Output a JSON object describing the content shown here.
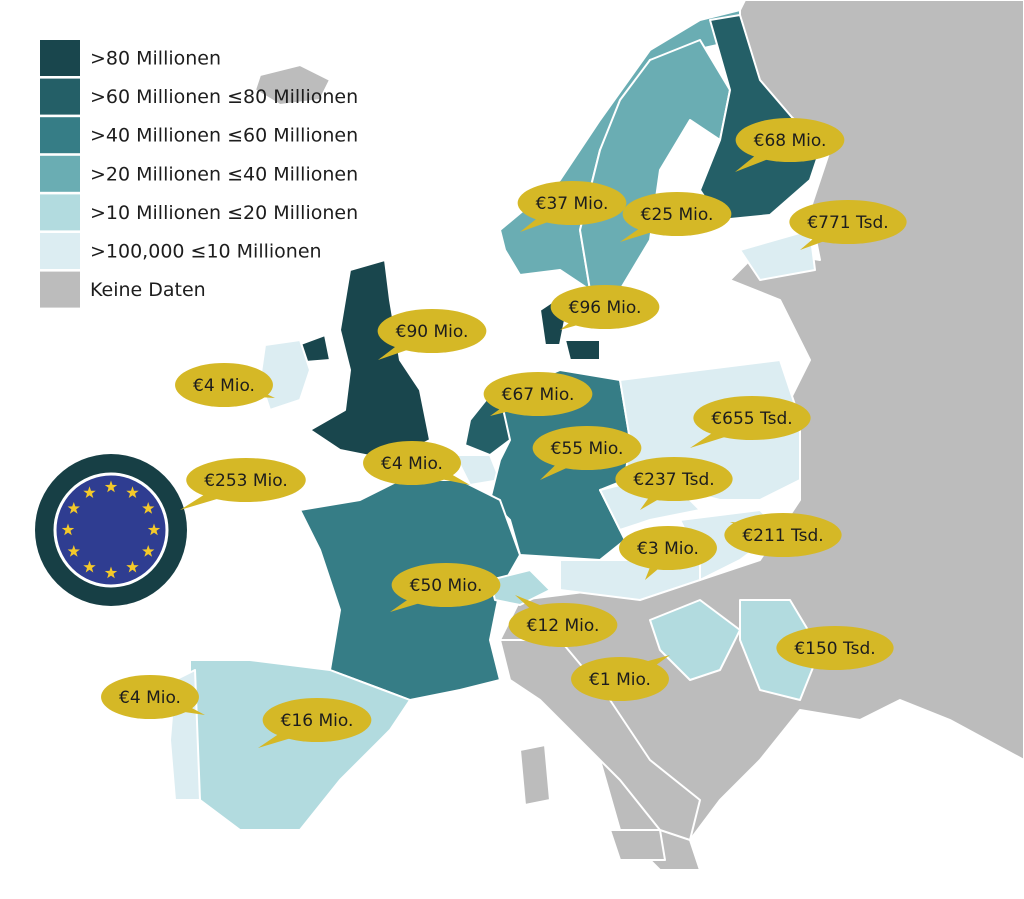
{
  "legend": [
    {
      "label": ">80 Millionen",
      "color": "#19464d"
    },
    {
      "label": ">60 Millionen ≤80 Millionen",
      "color": "#245f67"
    },
    {
      "label": ">40 Millionen ≤60 Millionen",
      "color": "#367d86"
    },
    {
      "label": ">20 Millionen ≤40 Millionen",
      "color": "#6aadb3"
    },
    {
      "label": ">10 Millionen ≤20 Millionen",
      "color": "#b2dbdf"
    },
    {
      "label": ">100,000 ≤10 Millionen",
      "color": "#dcedf2"
    },
    {
      "label": "Keine Daten",
      "color": "#bcbcbc"
    }
  ],
  "bubble_color": "#d5b826",
  "callouts": [
    {
      "label": "€68 Mio."
    },
    {
      "label": "€771 Tsd."
    },
    {
      "label": "€37 Mio."
    },
    {
      "label": "€25 Mio."
    },
    {
      "label": "€96 Mio."
    },
    {
      "label": "€90 Mio."
    },
    {
      "label": "€4 Mio."
    },
    {
      "label": "€67 Mio."
    },
    {
      "label": "€655 Tsd."
    },
    {
      "label": "€4 Mio."
    },
    {
      "label": "€55 Mio."
    },
    {
      "label": "€253 Mio."
    },
    {
      "label": "€237 Tsd."
    },
    {
      "label": "€3 Mio."
    },
    {
      "label": "€211 Tsd."
    },
    {
      "label": "€50 Mio."
    },
    {
      "label": "€12 Mio."
    },
    {
      "label": "€150 Tsd."
    },
    {
      "label": "€1 Mio."
    },
    {
      "label": "€4 Mio."
    },
    {
      "label": "€16 Mio."
    }
  ]
}
